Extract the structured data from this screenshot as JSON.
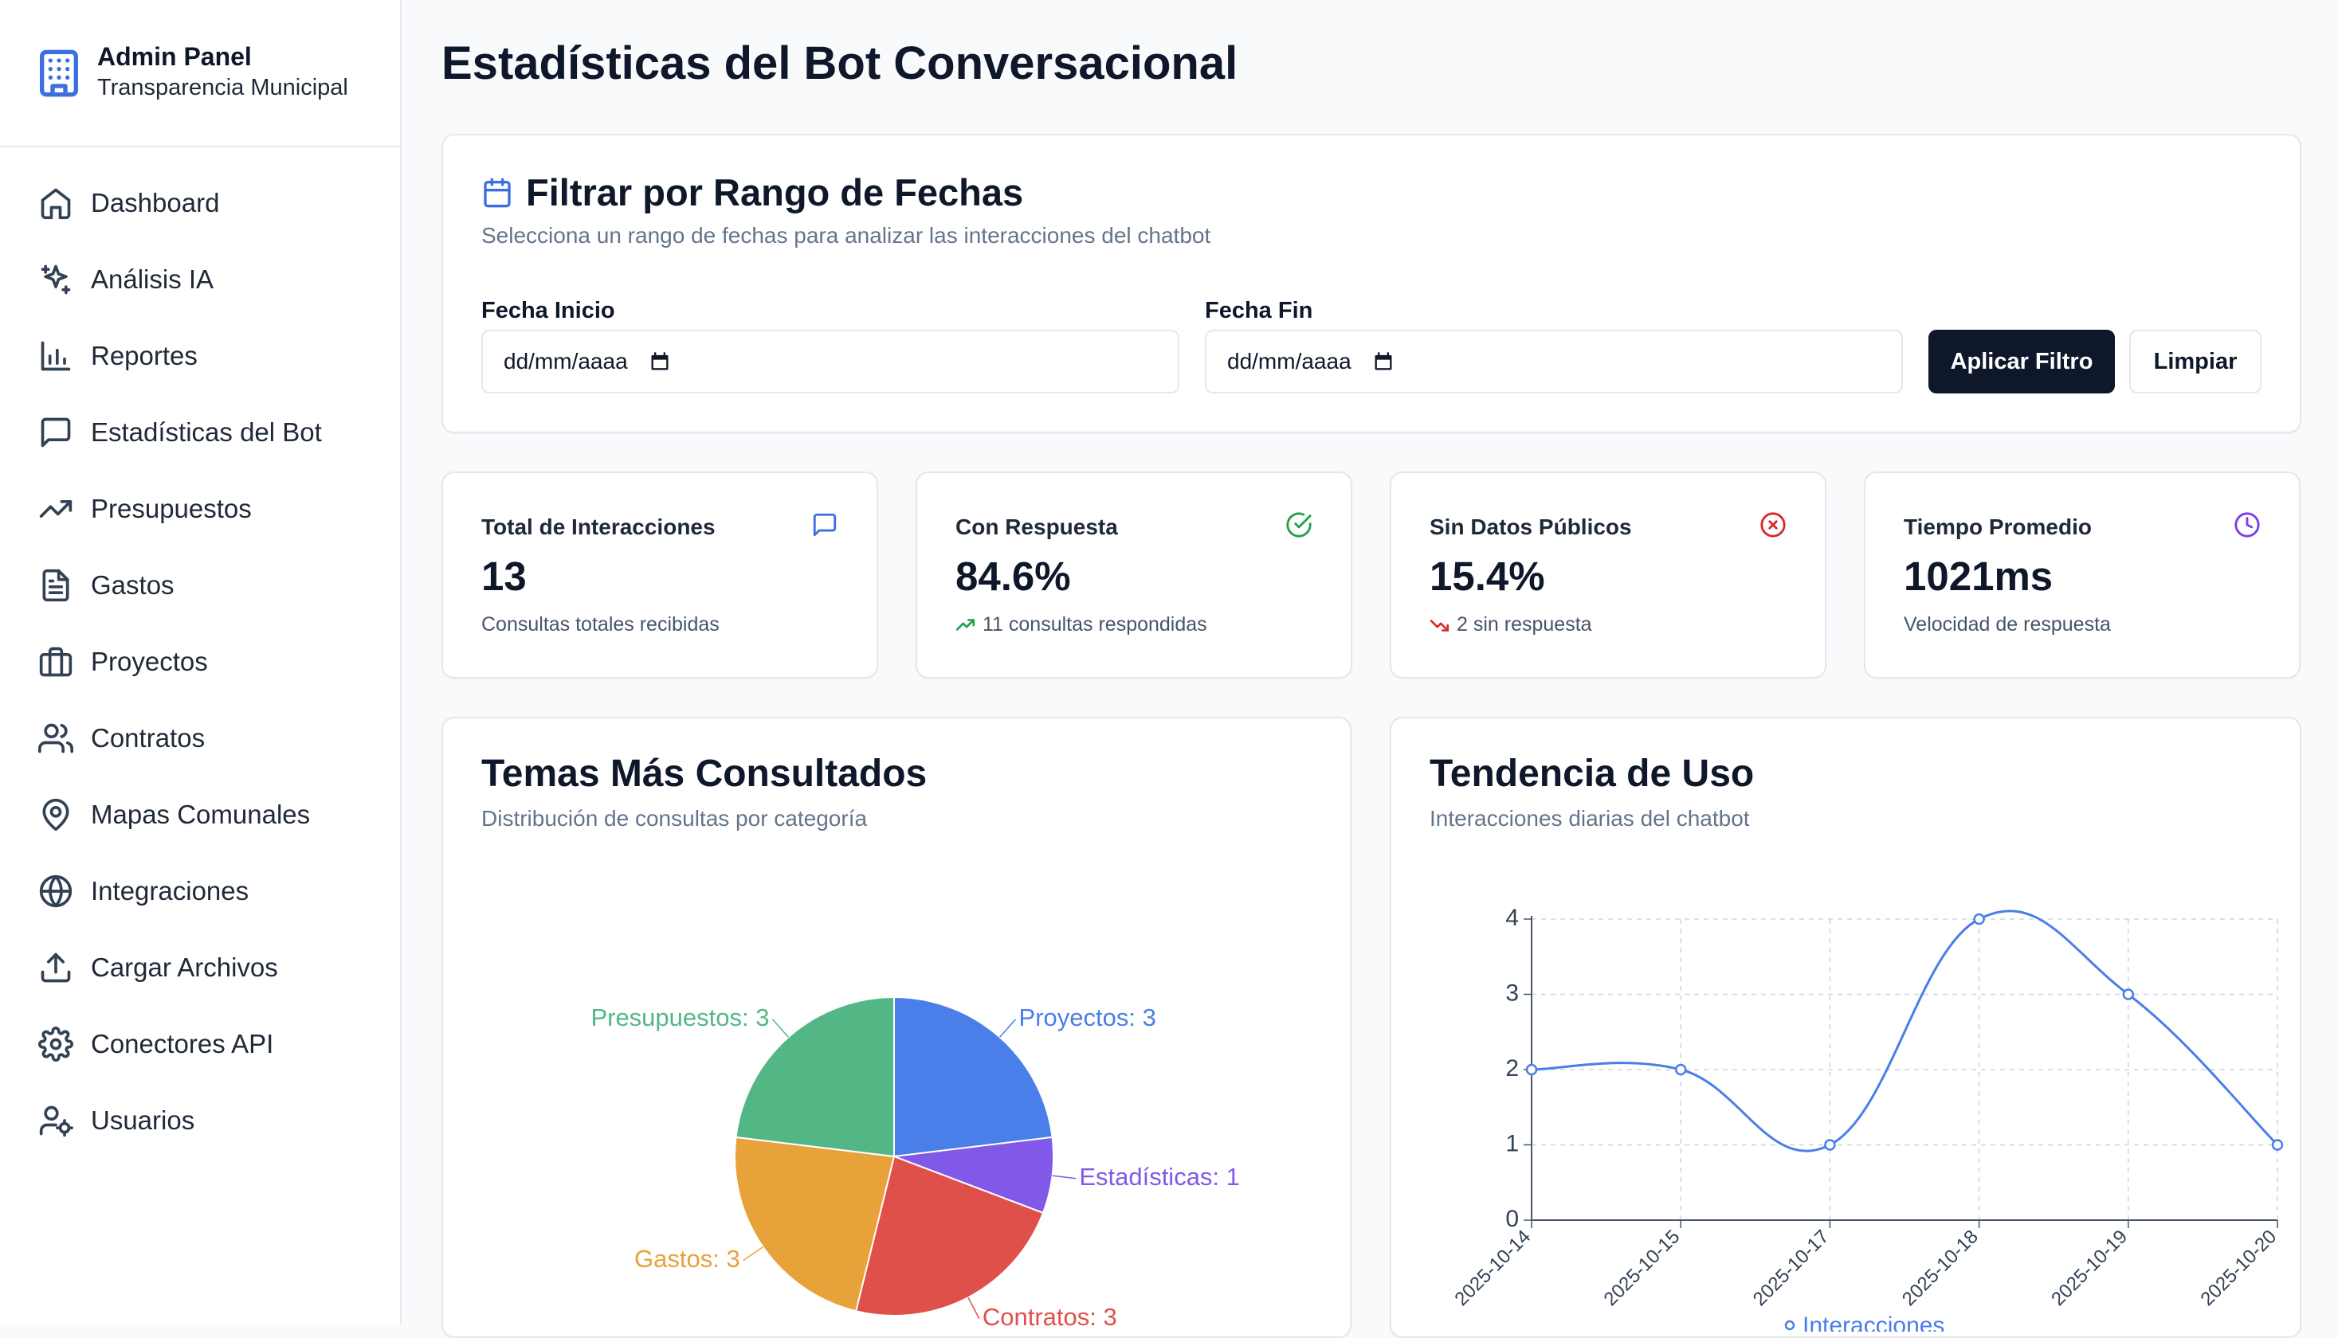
{
  "brand": {
    "title": "Admin Panel",
    "subtitle": "Transparencia Municipal"
  },
  "sidebar": {
    "items": [
      {
        "label": "Dashboard",
        "icon": "home-icon"
      },
      {
        "label": "Análisis IA",
        "icon": "sparkles-icon"
      },
      {
        "label": "Reportes",
        "icon": "bar-chart-icon"
      },
      {
        "label": "Estadísticas del Bot",
        "icon": "message-square-icon"
      },
      {
        "label": "Presupuestos",
        "icon": "trending-up-icon"
      },
      {
        "label": "Gastos",
        "icon": "file-text-icon"
      },
      {
        "label": "Proyectos",
        "icon": "briefcase-icon"
      },
      {
        "label": "Contratos",
        "icon": "users-icon"
      },
      {
        "label": "Mapas Comunales",
        "icon": "map-pin-icon"
      },
      {
        "label": "Integraciones",
        "icon": "globe-icon"
      },
      {
        "label": "Cargar Archivos",
        "icon": "upload-icon"
      },
      {
        "label": "Conectores API",
        "icon": "gear-icon"
      },
      {
        "label": "Usuarios",
        "icon": "user-cog-icon"
      }
    ]
  },
  "page": {
    "title": "Estadísticas del Bot Conversacional"
  },
  "filter": {
    "title": "Filtrar por Rango de Fechas",
    "description": "Selecciona un rango de fechas para analizar las interacciones del chatbot",
    "start_label": "Fecha Inicio",
    "start_value": "dd/mm/aaaa",
    "end_label": "Fecha Fin",
    "end_value": "dd/mm/aaaa",
    "apply_label": "Aplicar Filtro",
    "clear_label": "Limpiar"
  },
  "stats": [
    {
      "label": "Total de Interacciones",
      "value": "13",
      "sub": "Consultas totales recibidas",
      "icon": "message-square-icon",
      "color": "#3b6fe0"
    },
    {
      "label": "Con Respuesta",
      "value": "84.6%",
      "sub": "11 consultas respondidas",
      "icon": "check-circle-icon",
      "color": "#22a04b",
      "trend": "up"
    },
    {
      "label": "Sin Datos Públicos",
      "value": "15.4%",
      "sub": "2 sin respuesta",
      "icon": "x-circle-icon",
      "color": "#dc2626",
      "trend": "down"
    },
    {
      "label": "Tiempo Promedio",
      "value": "1021ms",
      "sub": "Velocidad de respuesta",
      "icon": "clock-icon",
      "color": "#7c3aed"
    }
  ],
  "pie_card": {
    "title": "Temas Más Consultados",
    "description": "Distribución de consultas por categoría"
  },
  "line_card": {
    "title": "Tendencia de Uso",
    "description": "Interacciones diarias del chatbot"
  },
  "chart_data": [
    {
      "type": "pie",
      "slices": [
        {
          "label": "Proyectos: 3",
          "name": "Proyectos",
          "value": 3,
          "color": "#4a7ee8"
        },
        {
          "label": "Estadísticas: 1",
          "name": "Estadísticas",
          "value": 1,
          "color": "#8159e8"
        },
        {
          "label": "Contratos: 3",
          "name": "Contratos",
          "value": 3,
          "color": "#e0504b"
        },
        {
          "label": "Gastos: 3",
          "name": "Gastos",
          "value": 3,
          "color": "#e8a23a"
        },
        {
          "label": "Presupuestos: 3",
          "name": "Presupuestos",
          "value": 3,
          "color": "#52b785"
        }
      ]
    },
    {
      "type": "line",
      "x": [
        "2025-10-14",
        "2025-10-15",
        "2025-10-17",
        "2025-10-18",
        "2025-10-19",
        "2025-10-20"
      ],
      "series": [
        {
          "name": "Interacciones",
          "values": [
            2,
            2,
            1,
            4,
            3,
            1
          ],
          "color": "#4a7ee8"
        }
      ],
      "ylim": [
        0,
        4
      ],
      "yticks": [
        "0",
        "1",
        "2",
        "3",
        "4"
      ],
      "grid": true,
      "legend": "bottom"
    }
  ]
}
